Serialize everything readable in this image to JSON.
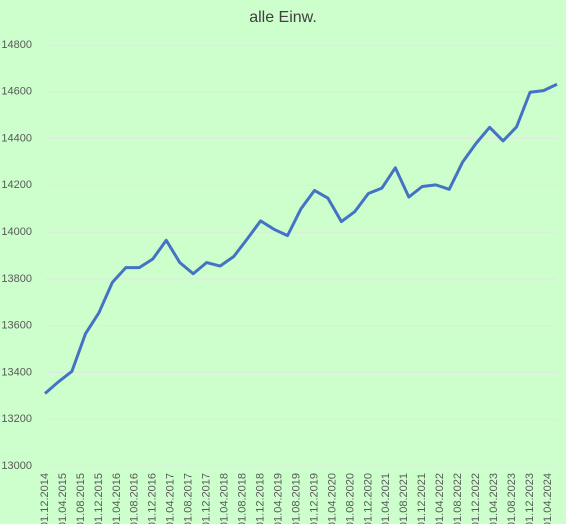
{
  "chart_data": {
    "type": "line",
    "subtitle": "alle Einw.",
    "x": [
      "01.12.2014",
      "01.03.2015",
      "01.06.2015",
      "01.09.2015",
      "01.12.2015",
      "01.03.2016",
      "01.06.2016",
      "01.09.2016",
      "01.12.2016",
      "01.03.2017",
      "01.06.2017",
      "01.09.2017",
      "01.12.2017",
      "01.03.2018",
      "01.06.2018",
      "01.09.2018",
      "01.12.2018",
      "01.03.2019",
      "01.06.2019",
      "01.09.2019",
      "01.12.2019",
      "01.03.2020",
      "01.06.2020",
      "01.09.2020",
      "01.12.2020",
      "01.03.2021",
      "01.06.2021",
      "01.09.2021",
      "01.12.2021",
      "01.03.2022",
      "01.06.2022",
      "01.09.2022",
      "01.12.2022",
      "01.03.2023",
      "01.06.2023",
      "01.09.2023",
      "01.12.2023",
      "01.03.2024",
      "01.06.2024"
    ],
    "series": [
      {
        "color": "#4472c4",
        "values": [
          13310,
          13360,
          13405,
          13565,
          13655,
          13785,
          13848,
          13848,
          13885,
          13965,
          13870,
          13822,
          13870,
          13855,
          13895,
          13970,
          14048,
          14012,
          13985,
          14100,
          14178,
          14145,
          14045,
          14088,
          14165,
          14188,
          14275,
          14150,
          14195,
          14202,
          14183,
          14300,
          14380,
          14448,
          14390,
          14450,
          14598,
          14605,
          14632
        ]
      }
    ],
    "xticks": [
      "01.12.2014",
      "01.04.2015",
      "01.08.2015",
      "01.12.2015",
      "01.04.2016",
      "01.08.2016",
      "01.12.2016",
      "01.04.2017",
      "01.08.2017",
      "01.12.2017",
      "01.04.2018",
      "01.08.2018",
      "01.12.2018",
      "01.04.2019",
      "01.08.2019",
      "01.12.2019",
      "01.04.2020",
      "01.08.2020",
      "01.12.2020",
      "01.04.2021",
      "01.08.2021",
      "01.12.2021",
      "01.04.2022",
      "01.08.2022",
      "01.12.2022",
      "01.04.2023",
      "01.08.2023",
      "01.12.2023",
      "01.04.2024"
    ],
    "ylim": [
      13000,
      14800
    ],
    "yticks": [
      13000,
      13200,
      13400,
      13600,
      13800,
      14000,
      14200,
      14400,
      14600,
      14800
    ],
    "grid": true
  }
}
